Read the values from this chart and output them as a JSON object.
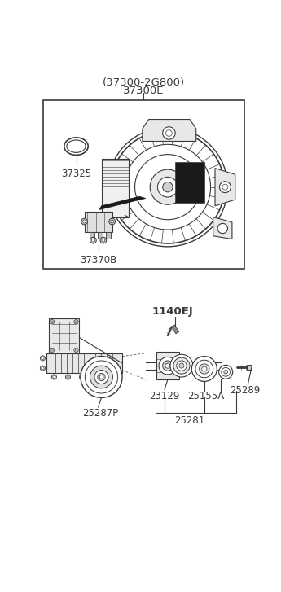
{
  "background_color": "#ffffff",
  "fig_width": 3.45,
  "fig_height": 7.27,
  "dpi": 100,
  "label_top1": "(37300-2G800)",
  "label_top2": "37300E",
  "label_37325": "37325",
  "label_37370B": "37370B",
  "label_1140EJ": "1140EJ",
  "label_25287P": "25287P",
  "label_23129": "23129",
  "label_25155A": "25155A",
  "label_25289": "25289",
  "label_25281": "25281",
  "lc": "#3a3a3a",
  "tc": "#3a3a3a"
}
